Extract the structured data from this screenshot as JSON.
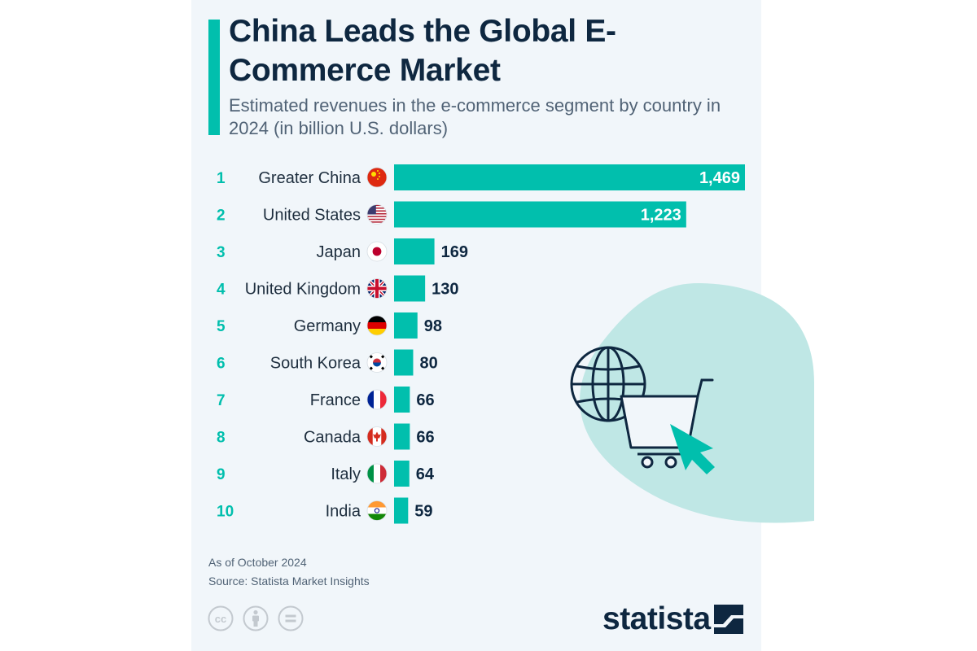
{
  "title": "China Leads the Global E-Commerce Market",
  "subtitle": "Estimated revenues in the e-commerce segment by country in 2024 (in billion U.S. dollars)",
  "footer": {
    "note": "As of October 2024",
    "source": "Source: Statista Market Insights"
  },
  "brand": "statista",
  "colors": {
    "bar": "#01bfad",
    "accent": "#01bfad",
    "rank": "#01bfad",
    "title": "#0e2740",
    "blob": "#bfe7e5",
    "label_inside": "#ffffff",
    "label_outside": "#0e2740",
    "card_background": "#f1f6fa"
  },
  "icons": [
    "globe-icon",
    "shopping-cart-icon",
    "cursor-arrow-icon",
    "creative-commons-icon",
    "attribution-icon",
    "no-derivatives-icon",
    "statista-logo-icon"
  ],
  "chart_data": {
    "type": "bar",
    "orientation": "horizontal",
    "categories": [
      "Greater China",
      "United States",
      "Japan",
      "United Kingdom",
      "Germany",
      "South Korea",
      "France",
      "Canada",
      "Italy",
      "India"
    ],
    "ranks": [
      "1",
      "2",
      "3",
      "4",
      "5",
      "6",
      "7",
      "8",
      "9",
      "10"
    ],
    "flags": [
      "cn",
      "us",
      "jp",
      "gb",
      "de",
      "kr",
      "fr",
      "ca",
      "it",
      "in"
    ],
    "values": [
      1469,
      1223,
      169,
      130,
      98,
      80,
      66,
      66,
      64,
      59
    ],
    "value_labels": [
      "1,469",
      "1,223",
      "169",
      "130",
      "98",
      "80",
      "66",
      "66",
      "64",
      "59"
    ],
    "xlim": [
      0,
      1469
    ],
    "grid": false,
    "legend": "none"
  }
}
